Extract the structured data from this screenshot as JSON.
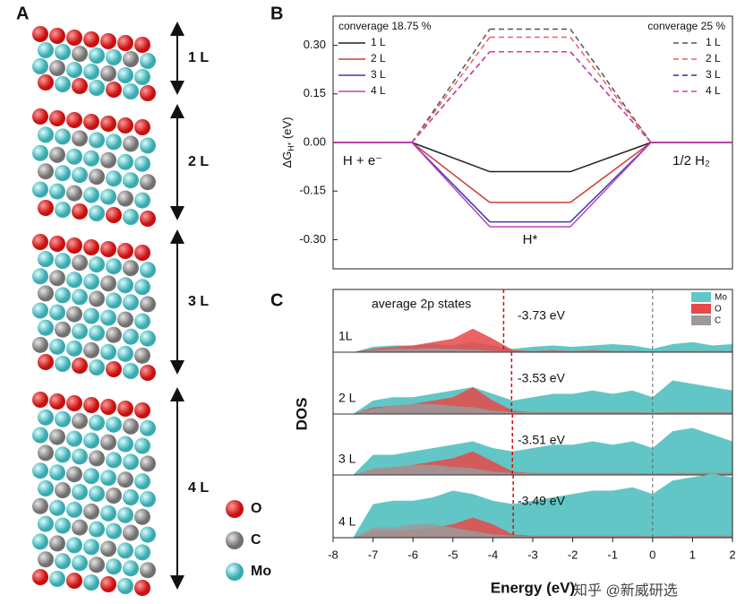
{
  "panel_a": {
    "panel": "A",
    "layers": [
      "1 L",
      "2 L",
      "3 L",
      "4 L"
    ],
    "legend": [
      "O",
      "C",
      "Mo"
    ]
  },
  "watermark": "知乎 @新威研选",
  "chart_data": [
    {
      "type": "energy-diagram",
      "panel": "B",
      "categories": [
        "H + e⁻",
        "H*",
        "1/2 H₂"
      ],
      "ylabel": {
        "main": "ΔG",
        "sub": "H*",
        "unit": " (eV)"
      },
      "ylim": [
        -0.39,
        0.39
      ],
      "yticks": [
        {
          "value": -0.3,
          "label": "-0.30"
        },
        {
          "value": -0.15,
          "label": "-0.15"
        },
        {
          "value": 0,
          "label": "0.00"
        },
        {
          "value": 0.15,
          "label": "0.15"
        },
        {
          "value": 0.3,
          "label": "0.30"
        }
      ],
      "legend_groups": [
        {
          "title": "converage 18.75 %",
          "dashed": false,
          "series": [
            {
              "name": "1 L",
              "color": "#222222",
              "values": [
                0,
                -0.09,
                0
              ]
            },
            {
              "name": "2 L",
              "color": "#d23a3a",
              "values": [
                0,
                -0.185,
                0
              ]
            },
            {
              "name": "3 L",
              "color": "#3c3ca8",
              "values": [
                0,
                -0.245,
                0
              ]
            },
            {
              "name": "4 L",
              "color": "#c040c0",
              "values": [
                0,
                -0.26,
                0
              ]
            }
          ]
        },
        {
          "title": "converage 25 %",
          "dashed": true,
          "series": [
            {
              "name": "1 L",
              "color": "#555555",
              "values": [
                0,
                0.35,
                0
              ]
            },
            {
              "name": "2 L",
              "color": "#f06060",
              "values": [
                0,
                0.325,
                0
              ]
            },
            {
              "name": "3 L",
              "color": "#303090",
              "values": [
                0,
                0.28,
                0
              ]
            },
            {
              "name": "4 L",
              "color": "#d040a0",
              "values": [
                0,
                0.28,
                0
              ]
            }
          ]
        }
      ]
    },
    {
      "type": "area",
      "panel": "C",
      "xlabel": "Energy (eV)",
      "ylabel": "DOS",
      "annotation": "average 2p states",
      "xlim": [
        -8,
        2
      ],
      "xticks": [
        -8,
        -7,
        -6,
        -5,
        -4,
        -3,
        -2,
        -1,
        0,
        1,
        2
      ],
      "reference_lines": [
        0
      ],
      "x": [
        -7.5,
        -7,
        -6.5,
        -6,
        -5.5,
        -5,
        -4.5,
        -4,
        -3.5,
        -3,
        -2.5,
        -2,
        -1.5,
        -1,
        -0.5,
        0,
        0.5,
        1,
        1.5,
        2
      ],
      "layers": [
        {
          "label": "1L",
          "center": -3.73,
          "center_label": "-3.73 eV"
        },
        {
          "label": "2 L",
          "center": -3.53,
          "center_label": "-3.53 eV"
        },
        {
          "label": "3 L",
          "center": -3.51,
          "center_label": "-3.51 eV"
        },
        {
          "label": "4 L",
          "center": -3.49,
          "center_label": "-3.49 eV"
        }
      ],
      "series": [
        {
          "name": "Mo",
          "color": "#63c6c6",
          "values": [
            [
              0,
              0.08,
              0.1,
              0.1,
              0.12,
              0.1,
              0.15,
              0.1,
              0.05,
              0.08,
              0.1,
              0.08,
              0.1,
              0.12,
              0.1,
              0.05,
              0.12,
              0.15,
              0.1,
              0.12
            ],
            [
              0,
              0.2,
              0.25,
              0.25,
              0.3,
              0.35,
              0.4,
              0.3,
              0.2,
              0.25,
              0.3,
              0.3,
              0.35,
              0.3,
              0.35,
              0.25,
              0.5,
              0.45,
              0.4,
              0.35
            ],
            [
              0,
              0.3,
              0.3,
              0.35,
              0.4,
              0.45,
              0.5,
              0.4,
              0.35,
              0.4,
              0.45,
              0.45,
              0.5,
              0.45,
              0.5,
              0.4,
              0.65,
              0.7,
              0.6,
              0.5
            ],
            [
              0,
              0.5,
              0.55,
              0.55,
              0.6,
              0.7,
              0.65,
              0.55,
              0.5,
              0.55,
              0.6,
              0.65,
              0.7,
              0.7,
              0.75,
              0.65,
              0.85,
              0.9,
              0.95,
              0.9
            ]
          ]
        },
        {
          "name": "O",
          "color": "#e84848",
          "values": [
            [
              0,
              0.05,
              0.08,
              0.1,
              0.15,
              0.2,
              0.35,
              0.2,
              0.03,
              0.02,
              0.03,
              0.02,
              0.03,
              0.02,
              0.02,
              0.01,
              0.02,
              0.02,
              0.02,
              0.02
            ],
            [
              0,
              0.1,
              0.12,
              0.15,
              0.2,
              0.25,
              0.4,
              0.2,
              0.05,
              0.03,
              0.03,
              0.03,
              0.03,
              0.03,
              0.03,
              0.02,
              0.03,
              0.03,
              0.03,
              0.03
            ],
            [
              0,
              0.08,
              0.1,
              0.15,
              0.2,
              0.25,
              0.35,
              0.2,
              0.05,
              0.03,
              0.03,
              0.03,
              0.03,
              0.03,
              0.03,
              0.02,
              0.03,
              0.03,
              0.03,
              0.03
            ],
            [
              0,
              0.1,
              0.1,
              0.12,
              0.15,
              0.2,
              0.3,
              0.2,
              0.05,
              0.03,
              0.03,
              0.03,
              0.03,
              0.03,
              0.03,
              0.02,
              0.03,
              0.03,
              0.03,
              0.03
            ]
          ]
        },
        {
          "name": "C",
          "color": "#9a9a9a",
          "values": [
            [
              0,
              0.03,
              0.05,
              0.05,
              0.06,
              0.05,
              0.04,
              0.02,
              0.01,
              0.02,
              0.02,
              0.02,
              0.02,
              0.02,
              0.02,
              0.01,
              0.02,
              0.02,
              0.02,
              0.02
            ],
            [
              0,
              0.08,
              0.12,
              0.15,
              0.15,
              0.12,
              0.1,
              0.05,
              0.03,
              0.03,
              0.03,
              0.03,
              0.03,
              0.03,
              0.03,
              0.02,
              0.03,
              0.03,
              0.03,
              0.03
            ],
            [
              0,
              0.1,
              0.12,
              0.15,
              0.15,
              0.12,
              0.1,
              0.05,
              0.03,
              0.03,
              0.03,
              0.03,
              0.03,
              0.03,
              0.03,
              0.02,
              0.03,
              0.03,
              0.03,
              0.03
            ],
            [
              0,
              0.15,
              0.15,
              0.2,
              0.2,
              0.15,
              0.1,
              0.05,
              0.03,
              0.03,
              0.03,
              0.03,
              0.03,
              0.03,
              0.03,
              0.02,
              0.03,
              0.03,
              0.03,
              0.03
            ]
          ]
        }
      ]
    }
  ]
}
